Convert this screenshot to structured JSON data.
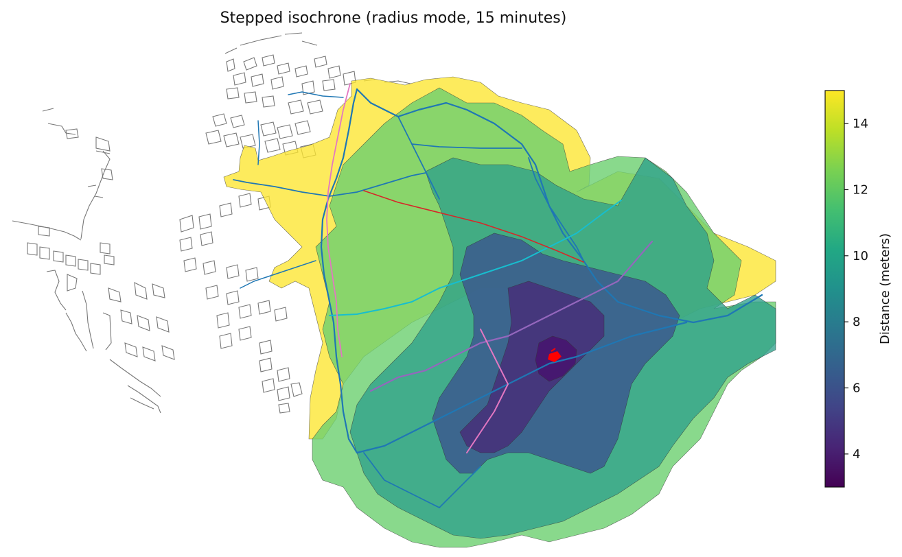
{
  "title": "Stepped isochrone (radius mode, 15 minutes)",
  "colorbar": {
    "label": "Distance (meters)",
    "min": 3,
    "max": 15,
    "ticks": [
      "4",
      "6",
      "8",
      "10",
      "12",
      "14"
    ],
    "tick_values": [
      4,
      6,
      8,
      10,
      12,
      14
    ],
    "colormap": "viridis"
  },
  "zone_colors": {
    "level_3_4": "#47136e",
    "level_5_6": "#3b4f8f",
    "level_7_8": "#2a7f8e",
    "level_9_10": "#2ea08a",
    "level_11_12": "#6ccf6f",
    "level_13_15": "#fde52f"
  },
  "line_colors": {
    "network": "#1f77b4",
    "line_cyan": "#17becf",
    "line_purple": "#9467bd",
    "line_pink": "#e377c2",
    "line_red": "#d62728",
    "origin": "#ff0000",
    "buildings": "#777777"
  }
}
